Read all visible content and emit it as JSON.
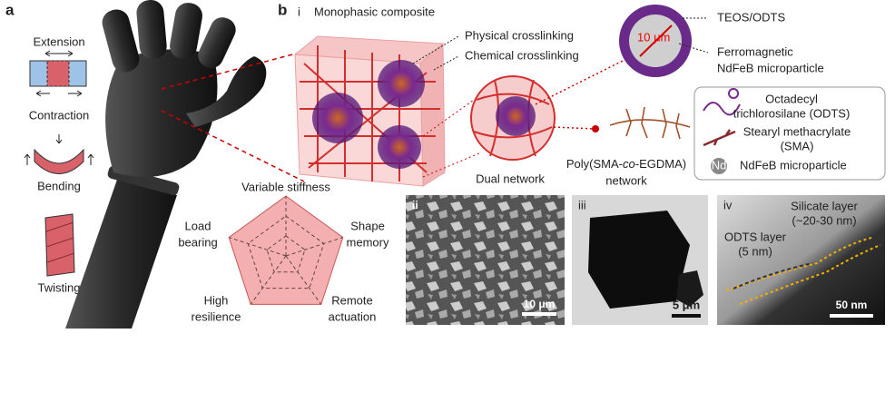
{
  "panel_a": {
    "label": "a",
    "items": [
      "Extension",
      "Contraction",
      "Bending",
      "Twisting"
    ]
  },
  "panel_b": {
    "label": "b",
    "sub": "i",
    "title": "Monophasic composite",
    "callouts": [
      "Physical crosslinking",
      "Chemical crosslinking"
    ],
    "particle": {
      "scale": "10 μm",
      "shell": "TEOS/ODTS",
      "core_lines": [
        "Ferromagnetic",
        "NdFeB microparticle"
      ]
    },
    "dual_network": "Dual network",
    "network_label": {
      "prefix": "Poly(SMA-",
      "italic": "co",
      "suffix": "-EGDMA)",
      "line2": "network"
    },
    "legend": [
      {
        "lines": [
          "Octadecyl",
          "trichlorosilane (ODTS)"
        ]
      },
      {
        "lines": [
          "Stearyl methacrylate",
          "(SMA)"
        ]
      },
      {
        "icon": "Nd",
        "lines": [
          "NdFeB microparticle"
        ]
      }
    ],
    "radar": {
      "axes": [
        [
          "Variable stiffness"
        ],
        [
          "Shape",
          "memory"
        ],
        [
          "Remote",
          "actuation"
        ],
        [
          "High",
          "resilience"
        ],
        [
          "Load",
          "bearing"
        ]
      ]
    },
    "micrographs": [
      {
        "label": "ii",
        "scale": "10 μm"
      },
      {
        "label": "iii",
        "scale": "5 μm"
      },
      {
        "label": "iv",
        "scale": "50 nm",
        "annotations": [
          [
            "Silicate layer",
            "(~20-30 nm)"
          ],
          [
            "ODTS layer",
            "(5 nm)"
          ]
        ]
      }
    ]
  }
}
